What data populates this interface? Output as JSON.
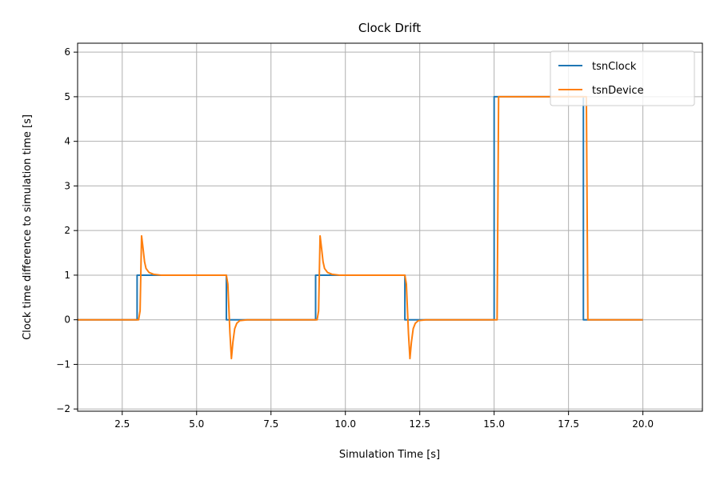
{
  "chart_data": {
    "type": "line",
    "title": "Clock Drift",
    "xlabel": "Simulation Time [s]",
    "ylabel": "Clock time difference to simulation time [s]",
    "xlim": [
      1.0,
      22.0
    ],
    "ylim": [
      -2.05,
      6.2
    ],
    "x_ticks": [
      2.5,
      5.0,
      7.5,
      10.0,
      12.5,
      15.0,
      17.5,
      20.0
    ],
    "x_tick_labels": [
      "2.5",
      "5.0",
      "7.5",
      "10.0",
      "12.5",
      "15.0",
      "17.5",
      "20.0"
    ],
    "y_ticks": [
      -2,
      -1,
      0,
      1,
      2,
      3,
      4,
      5,
      6
    ],
    "y_tick_labels": [
      "−2",
      "−1",
      "0",
      "1",
      "2",
      "3",
      "4",
      "5",
      "6"
    ],
    "grid": true,
    "legend_position": "top-right",
    "series": [
      {
        "name": "tsnClock",
        "color": "#1f77b4",
        "points": [
          [
            1.0,
            0
          ],
          [
            3.0,
            0
          ],
          [
            3.0,
            1
          ],
          [
            6.0,
            1
          ],
          [
            6.0,
            0
          ],
          [
            9.0,
            0
          ],
          [
            9.0,
            1
          ],
          [
            12.0,
            1
          ],
          [
            12.0,
            0
          ],
          [
            15.0,
            0
          ],
          [
            15.0,
            5
          ],
          [
            18.0,
            5
          ],
          [
            18.0,
            0
          ],
          [
            20.0,
            0
          ]
        ]
      },
      {
        "name": "tsnDevice",
        "color": "#ff7f0e",
        "points": [
          [
            1.0,
            0
          ],
          [
            3.05,
            0
          ],
          [
            3.1,
            0.2
          ],
          [
            3.15,
            1.88
          ],
          [
            3.2,
            1.6
          ],
          [
            3.25,
            1.3
          ],
          [
            3.3,
            1.15
          ],
          [
            3.4,
            1.06
          ],
          [
            3.55,
            1.02
          ],
          [
            3.8,
            1.0
          ],
          [
            6.0,
            1.0
          ],
          [
            6.05,
            0.8
          ],
          [
            6.12,
            -0.3
          ],
          [
            6.17,
            -0.87
          ],
          [
            6.22,
            -0.5
          ],
          [
            6.28,
            -0.2
          ],
          [
            6.35,
            -0.08
          ],
          [
            6.45,
            -0.02
          ],
          [
            6.7,
            0
          ],
          [
            9.05,
            0
          ],
          [
            9.1,
            0.2
          ],
          [
            9.15,
            1.88
          ],
          [
            9.2,
            1.6
          ],
          [
            9.25,
            1.3
          ],
          [
            9.3,
            1.15
          ],
          [
            9.4,
            1.06
          ],
          [
            9.55,
            1.02
          ],
          [
            9.8,
            1.0
          ],
          [
            12.0,
            1.0
          ],
          [
            12.05,
            0.8
          ],
          [
            12.12,
            -0.3
          ],
          [
            12.17,
            -0.87
          ],
          [
            12.22,
            -0.5
          ],
          [
            12.28,
            -0.2
          ],
          [
            12.35,
            -0.08
          ],
          [
            12.45,
            -0.02
          ],
          [
            12.7,
            0
          ],
          [
            15.1,
            0
          ],
          [
            15.15,
            5.0
          ],
          [
            18.1,
            5.0
          ],
          [
            18.15,
            0
          ],
          [
            20.0,
            0
          ]
        ]
      }
    ]
  }
}
